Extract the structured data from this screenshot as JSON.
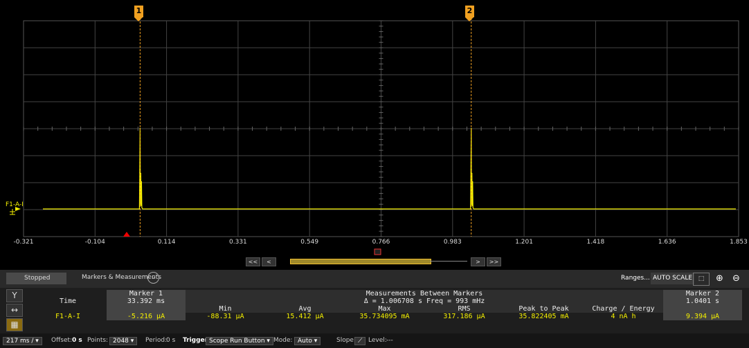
{
  "channel": {
    "label": "F1-A-I",
    "trace_color": "#f5f000"
  },
  "markers": [
    {
      "label": "1",
      "time": 0.0334
    },
    {
      "label": "2",
      "time": 1.0401
    }
  ],
  "x_axis": {
    "min": -0.321,
    "max": 1.853,
    "ticks": [
      "-0.321",
      "-0.104",
      "0.114",
      "0.331",
      "0.549",
      "0.766",
      "0.983",
      "1.201",
      "1.418",
      "1.636",
      "1.853"
    ]
  },
  "scroll": {
    "left_fast": "<<",
    "left": "<",
    "right": ">",
    "right_fast": ">>"
  },
  "header": {
    "status": "Stopped",
    "section": "Markers & Measurements",
    "ranges": "Ranges...",
    "autoscale": "AUTO SCALE"
  },
  "table": {
    "marker1_title": "Marker 1",
    "marker2_title": "Marker 2",
    "between_title": "Measurements Between Markers",
    "delta": "Δ = 1.006708 s   Freq = 993 mHz",
    "time_label": "Time",
    "marker1_time": "33.392 ms",
    "marker2_time": "1.0401 s",
    "columns": [
      "Min",
      "Avg",
      "Max",
      "RMS",
      "Peak to Peak",
      "Charge / Energy"
    ],
    "row_label": "F1-A-I",
    "marker1_value": "-5.216 µA",
    "marker2_value": "9.394 µA",
    "values": [
      "-88.31 µA",
      "15.412 µA",
      "35.734095 mA",
      "317.186 µA",
      "35.822405 mA",
      "4 nA h"
    ]
  },
  "status": {
    "timebase": "217 ms /",
    "offset_label": "Offset:",
    "offset": "0 s",
    "points_label": "Points:",
    "points": "2048",
    "period_label": "Period:",
    "period": "0 s",
    "trigger_label": "Trigger",
    "trigger": "Scope Run Button",
    "mode_label": "Mode:",
    "mode": "Auto",
    "slope_label": "Slope:",
    "level_label": "Level:",
    "level": "---"
  }
}
